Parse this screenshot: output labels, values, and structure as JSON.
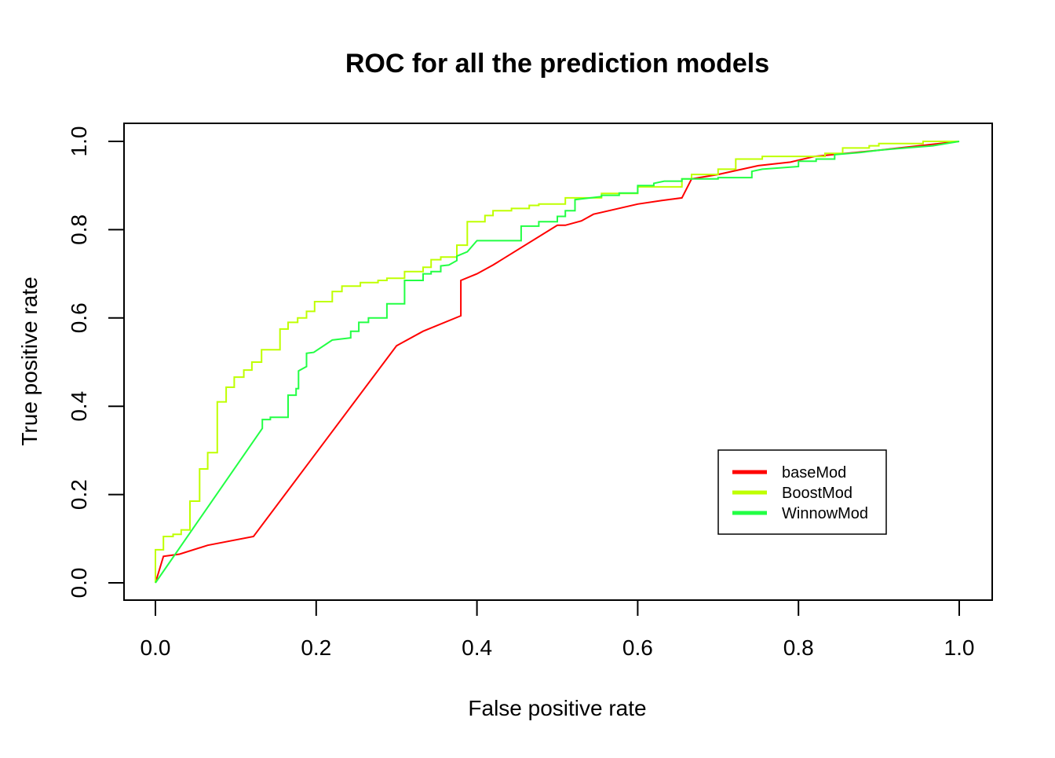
{
  "chart_data": {
    "type": "line",
    "title": "ROC for all the prediction models",
    "xlabel": "False positive rate",
    "ylabel": "True positive rate",
    "xlim": [
      0,
      1
    ],
    "ylim": [
      0,
      1
    ],
    "x_ticks": [
      0,
      0.2,
      0.4,
      0.6,
      0.8,
      1.0
    ],
    "x_tick_labels": [
      "0.0",
      "0.2",
      "0.4",
      "0.6",
      "0.8",
      "1.0"
    ],
    "y_ticks": [
      0,
      0.2,
      0.4,
      0.6,
      0.8,
      1.0
    ],
    "y_tick_labels": [
      "0.0",
      "0.2",
      "0.4",
      "0.6",
      "0.8",
      "1.0"
    ],
    "grid": false,
    "legend_position": "bottom-right",
    "series": [
      {
        "name": "baseMod",
        "color": "#ff0000",
        "points": [
          [
            0,
            0
          ],
          [
            0.01,
            0.06
          ],
          [
            0.03,
            0.065
          ],
          [
            0.065,
            0.085
          ],
          [
            0.122,
            0.105
          ],
          [
            0.3,
            0.537
          ],
          [
            0.333,
            0.57
          ],
          [
            0.38,
            0.605
          ],
          [
            0.38,
            0.685
          ],
          [
            0.4,
            0.7
          ],
          [
            0.42,
            0.72
          ],
          [
            0.5,
            0.81
          ],
          [
            0.51,
            0.81
          ],
          [
            0.53,
            0.82
          ],
          [
            0.545,
            0.835
          ],
          [
            0.6,
            0.858
          ],
          [
            0.63,
            0.866
          ],
          [
            0.655,
            0.872
          ],
          [
            0.667,
            0.915
          ],
          [
            0.7,
            0.925
          ],
          [
            0.75,
            0.945
          ],
          [
            0.79,
            0.953
          ],
          [
            0.82,
            0.966
          ],
          [
            0.9,
            0.98
          ],
          [
            0.95,
            0.99
          ],
          [
            1.0,
            1.0
          ]
        ]
      },
      {
        "name": "BoostMod",
        "color": "#bfff00",
        "points": [
          [
            0,
            0
          ],
          [
            0,
            0.075
          ],
          [
            0.01,
            0.075
          ],
          [
            0.01,
            0.105
          ],
          [
            0.022,
            0.105
          ],
          [
            0.022,
            0.11
          ],
          [
            0.032,
            0.11
          ],
          [
            0.032,
            0.12
          ],
          [
            0.043,
            0.12
          ],
          [
            0.043,
            0.185
          ],
          [
            0.055,
            0.185
          ],
          [
            0.055,
            0.258
          ],
          [
            0.065,
            0.258
          ],
          [
            0.065,
            0.295
          ],
          [
            0.077,
            0.295
          ],
          [
            0.077,
            0.41
          ],
          [
            0.088,
            0.41
          ],
          [
            0.088,
            0.443
          ],
          [
            0.098,
            0.443
          ],
          [
            0.098,
            0.466
          ],
          [
            0.11,
            0.466
          ],
          [
            0.11,
            0.482
          ],
          [
            0.12,
            0.482
          ],
          [
            0.12,
            0.5
          ],
          [
            0.132,
            0.5
          ],
          [
            0.132,
            0.528
          ],
          [
            0.155,
            0.528
          ],
          [
            0.155,
            0.575
          ],
          [
            0.165,
            0.575
          ],
          [
            0.165,
            0.59
          ],
          [
            0.177,
            0.59
          ],
          [
            0.177,
            0.6
          ],
          [
            0.188,
            0.6
          ],
          [
            0.188,
            0.615
          ],
          [
            0.198,
            0.615
          ],
          [
            0.198,
            0.637
          ],
          [
            0.22,
            0.637
          ],
          [
            0.22,
            0.66
          ],
          [
            0.232,
            0.66
          ],
          [
            0.232,
            0.672
          ],
          [
            0.255,
            0.672
          ],
          [
            0.255,
            0.68
          ],
          [
            0.277,
            0.68
          ],
          [
            0.277,
            0.685
          ],
          [
            0.288,
            0.685
          ],
          [
            0.288,
            0.69
          ],
          [
            0.31,
            0.69
          ],
          [
            0.31,
            0.705
          ],
          [
            0.333,
            0.705
          ],
          [
            0.333,
            0.715
          ],
          [
            0.343,
            0.715
          ],
          [
            0.343,
            0.732
          ],
          [
            0.355,
            0.732
          ],
          [
            0.355,
            0.738
          ],
          [
            0.375,
            0.738
          ],
          [
            0.375,
            0.765
          ],
          [
            0.388,
            0.765
          ],
          [
            0.388,
            0.818
          ],
          [
            0.41,
            0.818
          ],
          [
            0.41,
            0.832
          ],
          [
            0.42,
            0.832
          ],
          [
            0.42,
            0.843
          ],
          [
            0.443,
            0.843
          ],
          [
            0.443,
            0.848
          ],
          [
            0.465,
            0.848
          ],
          [
            0.465,
            0.855
          ],
          [
            0.477,
            0.855
          ],
          [
            0.477,
            0.858
          ],
          [
            0.51,
            0.858
          ],
          [
            0.51,
            0.872
          ],
          [
            0.555,
            0.872
          ],
          [
            0.555,
            0.882
          ],
          [
            0.6,
            0.882
          ],
          [
            0.6,
            0.897
          ],
          [
            0.655,
            0.897
          ],
          [
            0.655,
            0.915
          ],
          [
            0.667,
            0.915
          ],
          [
            0.667,
            0.925
          ],
          [
            0.7,
            0.925
          ],
          [
            0.7,
            0.937
          ],
          [
            0.722,
            0.937
          ],
          [
            0.722,
            0.96
          ],
          [
            0.755,
            0.96
          ],
          [
            0.755,
            0.966
          ],
          [
            0.833,
            0.966
          ],
          [
            0.833,
            0.973
          ],
          [
            0.855,
            0.973
          ],
          [
            0.855,
            0.985
          ],
          [
            0.888,
            0.985
          ],
          [
            0.888,
            0.99
          ],
          [
            0.9,
            0.99
          ],
          [
            0.9,
            0.995
          ],
          [
            0.955,
            0.995
          ],
          [
            0.955,
            1.0
          ],
          [
            1.0,
            1.0
          ]
        ]
      },
      {
        "name": "WinnowMod",
        "color": "#22ff44",
        "points": [
          [
            0,
            0
          ],
          [
            0.133,
            0.35
          ],
          [
            0.133,
            0.37
          ],
          [
            0.143,
            0.37
          ],
          [
            0.143,
            0.375
          ],
          [
            0.165,
            0.375
          ],
          [
            0.165,
            0.425
          ],
          [
            0.175,
            0.425
          ],
          [
            0.175,
            0.44
          ],
          [
            0.178,
            0.44
          ],
          [
            0.178,
            0.48
          ],
          [
            0.188,
            0.49
          ],
          [
            0.188,
            0.52
          ],
          [
            0.197,
            0.522
          ],
          [
            0.22,
            0.55
          ],
          [
            0.243,
            0.555
          ],
          [
            0.243,
            0.57
          ],
          [
            0.253,
            0.57
          ],
          [
            0.253,
            0.59
          ],
          [
            0.265,
            0.59
          ],
          [
            0.265,
            0.6
          ],
          [
            0.288,
            0.6
          ],
          [
            0.288,
            0.632
          ],
          [
            0.31,
            0.632
          ],
          [
            0.31,
            0.685
          ],
          [
            0.333,
            0.685
          ],
          [
            0.333,
            0.7
          ],
          [
            0.343,
            0.7
          ],
          [
            0.343,
            0.705
          ],
          [
            0.355,
            0.705
          ],
          [
            0.355,
            0.718
          ],
          [
            0.365,
            0.72
          ],
          [
            0.375,
            0.73
          ],
          [
            0.375,
            0.74
          ],
          [
            0.388,
            0.75
          ],
          [
            0.4,
            0.775
          ],
          [
            0.455,
            0.775
          ],
          [
            0.455,
            0.808
          ],
          [
            0.477,
            0.808
          ],
          [
            0.477,
            0.818
          ],
          [
            0.5,
            0.818
          ],
          [
            0.5,
            0.83
          ],
          [
            0.51,
            0.83
          ],
          [
            0.51,
            0.843
          ],
          [
            0.522,
            0.843
          ],
          [
            0.522,
            0.868
          ],
          [
            0.555,
            0.875
          ],
          [
            0.555,
            0.878
          ],
          [
            0.577,
            0.878
          ],
          [
            0.577,
            0.883
          ],
          [
            0.6,
            0.883
          ],
          [
            0.6,
            0.9
          ],
          [
            0.62,
            0.9
          ],
          [
            0.62,
            0.905
          ],
          [
            0.633,
            0.91
          ],
          [
            0.655,
            0.91
          ],
          [
            0.655,
            0.915
          ],
          [
            0.7,
            0.915
          ],
          [
            0.7,
            0.918
          ],
          [
            0.742,
            0.918
          ],
          [
            0.742,
            0.932
          ],
          [
            0.755,
            0.937
          ],
          [
            0.8,
            0.943
          ],
          [
            0.8,
            0.955
          ],
          [
            0.822,
            0.955
          ],
          [
            0.822,
            0.96
          ],
          [
            0.845,
            0.96
          ],
          [
            0.845,
            0.97
          ],
          [
            0.877,
            0.975
          ],
          [
            0.9,
            0.98
          ],
          [
            0.933,
            0.985
          ],
          [
            0.967,
            0.99
          ],
          [
            1.0,
            1.0
          ]
        ]
      }
    ]
  }
}
